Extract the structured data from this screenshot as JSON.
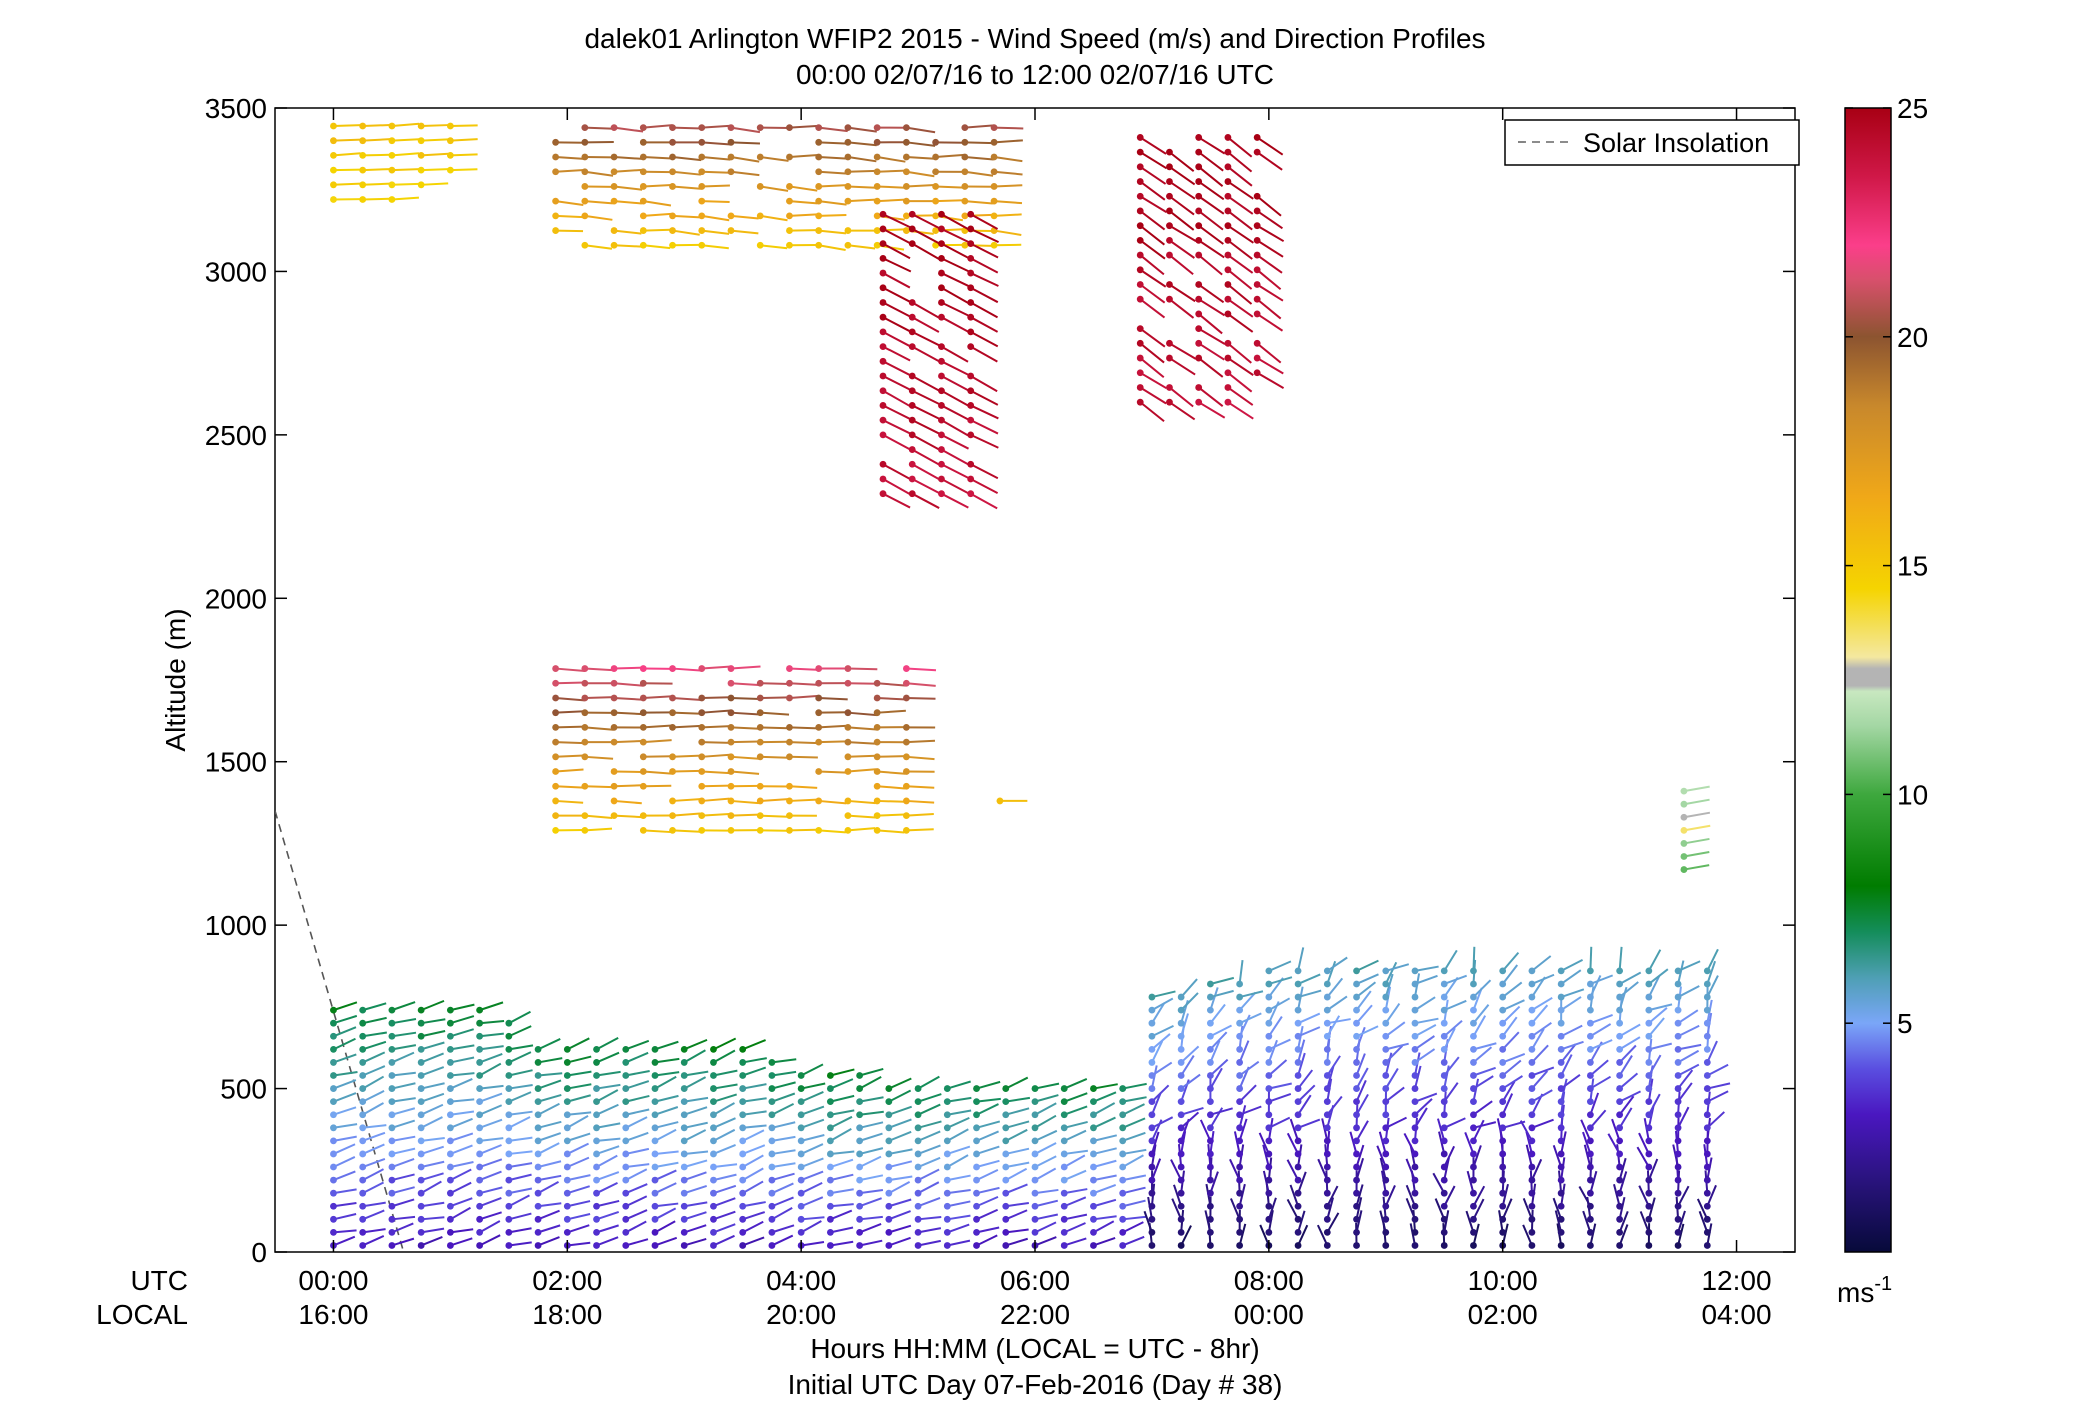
{
  "chart_data": {
    "type": "wind-barb-profile",
    "title_line1": "dalek01 Arlington WFIP2 2015 - Wind Speed (m/s) and Direction Profiles",
    "title_line2": "00:00 02/07/16 to 12:00 02/07/16  UTC",
    "ylabel": "Altitude (m)",
    "ylim": [
      0,
      3500
    ],
    "yticks": [
      "0",
      "500",
      "1000",
      "1500",
      "2000",
      "2500",
      "3000",
      "3500"
    ],
    "xlim": [
      -0.5,
      12.5
    ],
    "x_row_utc_label": "UTC",
    "x_row_local_label": "LOCAL",
    "xticks_utc": [
      "00:00",
      "02:00",
      "04:00",
      "06:00",
      "08:00",
      "10:00",
      "12:00"
    ],
    "xticks_local": [
      "16:00",
      "18:00",
      "20:00",
      "22:00",
      "00:00",
      "02:00",
      "04:00"
    ],
    "xlabel_line1": "Hours HH:MM  (LOCAL = UTC - 8hr)",
    "xlabel_line2": "Initial UTC Day 07-Feb-2016 (Day # 38)",
    "legend": {
      "label": "Solar Insolation",
      "placement": "top-right",
      "line_style": "dashed",
      "color": "#666666"
    },
    "colorbar": {
      "ticks": [
        "5",
        "10",
        "15",
        "20",
        "25"
      ],
      "range": [
        0,
        25
      ],
      "unit": "ms",
      "unit_exponent": "-1"
    },
    "solar_insolation_line": {
      "x": [
        -0.5,
        0.6
      ],
      "y": [
        1350,
        0
      ]
    },
    "wind_regions": [
      {
        "name": "boundary-layer-early",
        "t_start": 0.0,
        "t_end": 6.8,
        "z_min": 20,
        "z_max_profile": [
          [
            0,
            760
          ],
          [
            1.4,
            760
          ],
          [
            1.7,
            640
          ],
          [
            3.5,
            620
          ],
          [
            4.0,
            560
          ],
          [
            5.0,
            530
          ],
          [
            6.8,
            530
          ]
        ],
        "speed_low": 3.0,
        "speed_high": 7.5,
        "dir_low": 240,
        "dir_high": 265
      },
      {
        "name": "boundary-layer-late",
        "t_start": 7.0,
        "t_end": 11.9,
        "z_min": 20,
        "z_max_profile": [
          [
            7.0,
            780
          ],
          [
            8.0,
            860
          ],
          [
            10.0,
            880
          ],
          [
            11.9,
            880
          ]
        ],
        "speed_low": 1.0,
        "speed_high": 6.0,
        "dir_low": 180,
        "dir_high": 260
      },
      {
        "name": "upper-layer-midlevel",
        "t_start": 1.9,
        "t_end": 5.0,
        "z_min": 1290,
        "z_max": 1820,
        "speed_low": 15,
        "speed_high": 22,
        "dir_low": 265,
        "dir_high": 275
      },
      {
        "name": "upper-layer-top-left",
        "t_start": 0.0,
        "t_end": 1.1,
        "z_min": 3220,
        "z_max": 3470,
        "speed_low": 14.5,
        "speed_high": 15.5,
        "dir_low": 265,
        "dir_high": 270
      },
      {
        "name": "upper-layer-top-mid",
        "t_start": 1.9,
        "t_end": 5.8,
        "z_min": 3080,
        "z_max": 3470,
        "speed_low": 15,
        "speed_high": 21,
        "dir_low": 265,
        "dir_high": 280
      },
      {
        "name": "jet-core",
        "t_start": 4.7,
        "t_end": 5.6,
        "z_min": 2320,
        "z_max": 3200,
        "speed_low": 24,
        "speed_high": 25,
        "dir_low": 295,
        "dir_high": 300
      },
      {
        "name": "jet-upper-right",
        "t_start": 6.9,
        "t_end": 7.9,
        "z_min": 2600,
        "z_max": 3450,
        "speed_low": 24,
        "speed_high": 25,
        "dir_low": 300,
        "dir_high": 310
      }
    ]
  }
}
